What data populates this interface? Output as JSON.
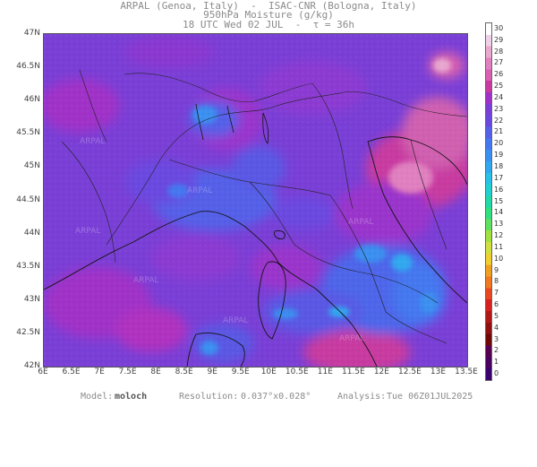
{
  "header": {
    "line1": "ARPAL (Genoa, Italy)  -  ISAC-CNR (Bologna, Italy)",
    "line2": "950hPa Moisture (g/kg)",
    "line3": "18 UTC Wed 02 JUL  -  τ = 36h"
  },
  "map": {
    "lat_labels": [
      "47N",
      "46.5N",
      "46N",
      "45.5N",
      "45N",
      "44.5N",
      "44N",
      "43.5N",
      "43N",
      "42.5N",
      "42N"
    ],
    "lon_labels": [
      "6E",
      "6.5E",
      "7E",
      "7.5E",
      "8E",
      "8.5E",
      "9E",
      "9.5E",
      "10E",
      "10.5E",
      "11E",
      "11.5E",
      "12E",
      "12.5E",
      "13E",
      "13.5E"
    ],
    "watermark": "ARPAL"
  },
  "colorbar": {
    "labels": [
      "30",
      "29",
      "28",
      "27",
      "26",
      "25",
      "24",
      "23",
      "22",
      "21",
      "20",
      "19",
      "18",
      "17",
      "16",
      "15",
      "14",
      "13",
      "12",
      "11",
      "10",
      "9",
      "8",
      "7",
      "6",
      "5",
      "4",
      "3",
      "2",
      "1",
      "0"
    ],
    "colors": [
      "#ffffff",
      "#f0d0e8",
      "#e8a8d0",
      "#e080c0",
      "#d860b0",
      "#c83aa0",
      "#a030c8",
      "#7a3fd6",
      "#6a48e0",
      "#5560e8",
      "#4478f0",
      "#3a90f0",
      "#30a8f0",
      "#28c0e8",
      "#20d0d0",
      "#20d8a8",
      "#30e080",
      "#60e060",
      "#a0e040",
      "#d0e040",
      "#f0d030",
      "#f0a020",
      "#f07820",
      "#e84820",
      "#d82020",
      "#b01818",
      "#901010",
      "#700808",
      "#580050",
      "#4a0060",
      "#3a0070"
    ]
  },
  "footer": {
    "model_label": "Model:",
    "model_value": "moloch",
    "resolution_label": "Resolution:",
    "resolution_value": "0.037°x0.028°",
    "analysis_label": "Analysis:",
    "analysis_value": "Tue 06Z01JUL2025"
  }
}
